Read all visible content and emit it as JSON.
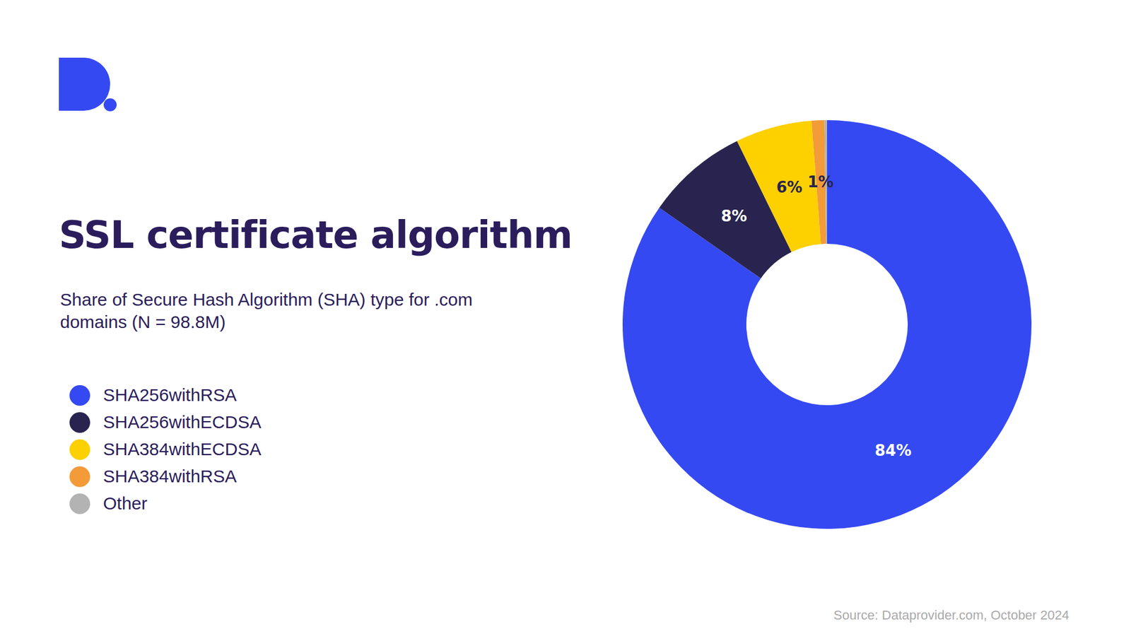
{
  "chart_data": {
    "type": "pie",
    "title": "SSL certificate algorithm",
    "subtitle": "Share of Secure Hash Algorithm (SHA) type for .com domains (N = 98.8M)",
    "source": "Source: Dataprovider.com, October 2024",
    "categories": [
      "SHA256withRSA",
      "SHA256withECDSA",
      "SHA384withECDSA",
      "SHA384withRSA",
      "Other"
    ],
    "values": [
      84,
      8,
      6,
      1,
      0.2
    ],
    "value_labels": [
      "84%",
      "8%",
      "6%",
      "1%",
      null
    ],
    "colors": [
      "#3549f2",
      "#29244f",
      "#fdd000",
      "#f29b38",
      "#b3b3b3"
    ],
    "data_labels": true,
    "legend": "left"
  }
}
